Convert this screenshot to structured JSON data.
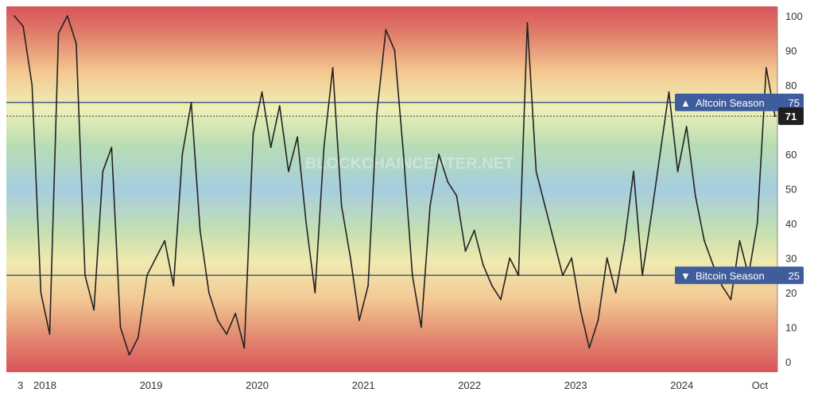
{
  "chart_data": {
    "type": "line",
    "title": "",
    "xlabel": "",
    "ylabel": "",
    "ylim": [
      0,
      100
    ],
    "grid": false,
    "legend": "none",
    "watermark": "BLOCKCHAINCENTER.NET",
    "x_tick_labels": [
      "3",
      "2018",
      "2019",
      "2020",
      "2021",
      "2022",
      "2023",
      "2024",
      "Oct"
    ],
    "y_tick_labels": [
      "0",
      "10",
      "20",
      "30",
      "40",
      "50",
      "60",
      "70",
      "80",
      "90",
      "100"
    ],
    "y_ticks": [
      0,
      10,
      20,
      30,
      40,
      50,
      60,
      70,
      80,
      90,
      100
    ],
    "reference_lines": [
      {
        "label": "Altcoin Season",
        "value": 75,
        "value_label": "75",
        "arrow": "▲"
      },
      {
        "label": "Bitcoin Season",
        "value": 25,
        "value_label": "25",
        "arrow": "▼"
      }
    ],
    "current_value": {
      "value": 71,
      "label": "71"
    },
    "series": [
      {
        "color": "#222222",
        "x": [
          "2017-09",
          "2017-10",
          "2017-11",
          "2017-12",
          "2018-01",
          "2018-02",
          "2018-03",
          "2018-04",
          "2018-05",
          "2018-06",
          "2018-07",
          "2018-08",
          "2018-09",
          "2018-10",
          "2018-11",
          "2018-12",
          "2019-01",
          "2019-02",
          "2019-03",
          "2019-04",
          "2019-05",
          "2019-06",
          "2019-07",
          "2019-08",
          "2019-09",
          "2019-10",
          "2019-11",
          "2019-12",
          "2020-01",
          "2020-02",
          "2020-03",
          "2020-04",
          "2020-05",
          "2020-06",
          "2020-07",
          "2020-08",
          "2020-09",
          "2020-10",
          "2020-11",
          "2020-12",
          "2021-01",
          "2021-02",
          "2021-03",
          "2021-04",
          "2021-05",
          "2021-06",
          "2021-07",
          "2021-08",
          "2021-09",
          "2021-10",
          "2021-11",
          "2021-12",
          "2022-01",
          "2022-02",
          "2022-03",
          "2022-04",
          "2022-05",
          "2022-06",
          "2022-07",
          "2022-08",
          "2022-09",
          "2022-10",
          "2022-11",
          "2022-12",
          "2023-01",
          "2023-02",
          "2023-03",
          "2023-04",
          "2023-05",
          "2023-06",
          "2023-07",
          "2023-08",
          "2023-09",
          "2023-10",
          "2023-11",
          "2023-12",
          "2024-01",
          "2024-02",
          "2024-03",
          "2024-04",
          "2024-05",
          "2024-06",
          "2024-07",
          "2024-08",
          "2024-09",
          "2024-10",
          "2024-11"
        ],
        "values": [
          100,
          97,
          80,
          20,
          8,
          95,
          100,
          92,
          25,
          15,
          55,
          62,
          10,
          2,
          7,
          25,
          30,
          35,
          22,
          60,
          75,
          38,
          20,
          12,
          8,
          14,
          4,
          66,
          78,
          62,
          74,
          55,
          65,
          40,
          20,
          62,
          85,
          45,
          30,
          12,
          22,
          72,
          96,
          90,
          60,
          25,
          10,
          45,
          60,
          52,
          48,
          32,
          38,
          28,
          22,
          18,
          30,
          25,
          98,
          55,
          45,
          35,
          25,
          30,
          15,
          4,
          12,
          30,
          20,
          35,
          55,
          25,
          42,
          60,
          78,
          55,
          68,
          48,
          35,
          28,
          22,
          18,
          35,
          25,
          40,
          85,
          71
        ]
      }
    ]
  }
}
